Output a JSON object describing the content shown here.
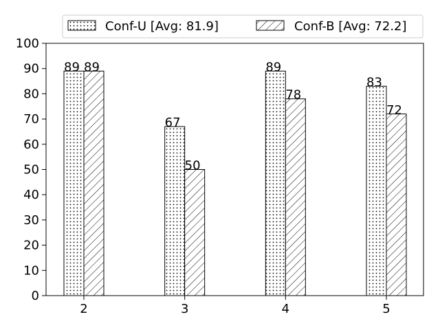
{
  "chart_data": {
    "type": "bar",
    "categories": [
      "2",
      "3",
      "4",
      "5"
    ],
    "series": [
      {
        "name": "Conf-U [Avg: 81.9]",
        "values": [
          89,
          67,
          89,
          83
        ],
        "pattern": "dots"
      },
      {
        "name": "Conf-B [Avg: 72.2]",
        "values": [
          89,
          50,
          78,
          72
        ],
        "pattern": "diagonal-hatch"
      }
    ],
    "ylim": [
      0,
      100
    ],
    "yticks": [
      0,
      10,
      20,
      30,
      40,
      50,
      60,
      70,
      80,
      90,
      100
    ],
    "title": "",
    "xlabel": "",
    "ylabel": "",
    "grid": false,
    "legend_position": "top, above plot",
    "colors": {
      "bar_fill": "#ffffff",
      "edge": "#000000"
    }
  }
}
